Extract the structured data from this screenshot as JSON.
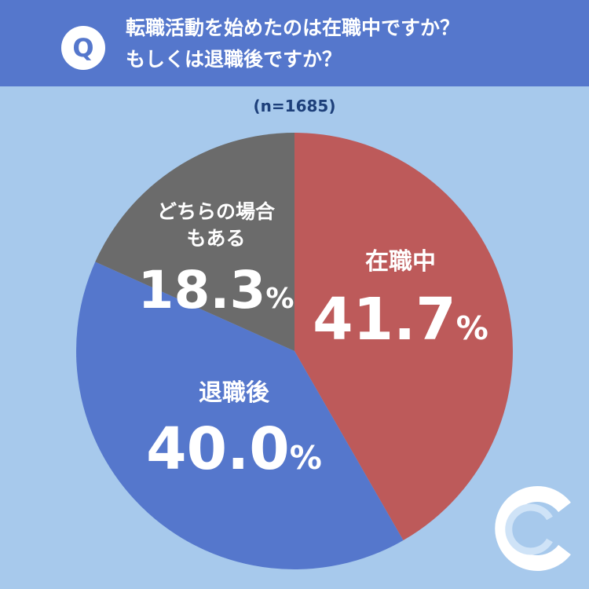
{
  "header": {
    "badge": "Q",
    "question_line1": "転職活動を始めたのは在職中ですか？",
    "question_line2": "もしくは退職後ですか？"
  },
  "sample_size": "(n=1685)",
  "colors": {
    "header_bg": "#5577cc",
    "page_bg": "#a7c9ec",
    "slice_in_job": "#bd5a5a",
    "slice_after_quit": "#5577cc",
    "slice_both": "#6b6b6b"
  },
  "logo": {
    "icon": "c-logo-icon"
  },
  "chart_data": {
    "type": "pie",
    "title": "転職活動を始めたのは在職中ですか？もしくは退職後ですか？",
    "slices": [
      {
        "label": "在職中",
        "value": 41.7,
        "value_label": "41.7",
        "unit": "%",
        "color": "#bd5a5a"
      },
      {
        "label": "退職後",
        "value": 40.0,
        "value_label": "40.0",
        "unit": "%",
        "color": "#5577cc"
      },
      {
        "label": "どちらの場合もある",
        "label_lines": [
          "どちらの場合",
          "もある"
        ],
        "value": 18.3,
        "value_label": "18.3",
        "unit": "%",
        "color": "#6b6b6b"
      }
    ],
    "start": "12 o'clock",
    "direction": "clockwise"
  }
}
